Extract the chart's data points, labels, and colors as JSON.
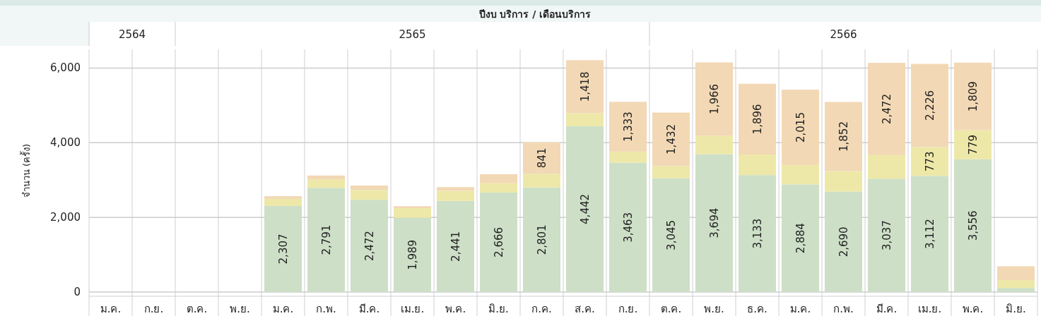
{
  "chart_data": {
    "type": "bar",
    "stacked": true,
    "xlabel": "ปีงบ บริการ  /  เดือนบริการ",
    "ylabel": "จำนวน (ครั้ง)",
    "categories": [
      "ม.ค.",
      "ก.ย.",
      "ต.ค.",
      "พ.ย.",
      "ม.ค.",
      "ก.พ.",
      "มี.ค.",
      "เม.ย.",
      "พ.ค.",
      "มิ.ย.",
      "ก.ค.",
      "ส.ค.",
      "ก.ย.",
      "ต.ค.",
      "พ.ย.",
      "ธ.ค.",
      "ม.ค.",
      "ก.พ.",
      "มี.ค.",
      "เม.ย.",
      "พ.ค.",
      "มิ.ย."
    ],
    "annotations": [
      "2564",
      "2565",
      "2566"
    ],
    "series": [
      {
        "color": "#cddfc7",
        "values": [
          null,
          null,
          null,
          null,
          2307,
          2791,
          2472,
          1989,
          2441,
          2666,
          2801,
          4442,
          3463,
          3045,
          3694,
          3133,
          2884,
          2690,
          3037,
          3112,
          3556,
          110
        ],
        "value_labels": [
          null,
          null,
          null,
          null,
          "2,307",
          "2,791",
          "2,472",
          "1,989",
          "2,441",
          "2,666",
          "2,801",
          "4,442",
          "3,463",
          "3,045",
          "3,694",
          "3,133",
          "2,884",
          "2,690",
          "3,037",
          "3,112",
          "3,556",
          null
        ]
      },
      {
        "color": "#ede8a8",
        "values": [
          null,
          null,
          null,
          null,
          190,
          230,
          260,
          260,
          270,
          250,
          370,
          350,
          300,
          330,
          490,
          550,
          520,
          550,
          630,
          773,
          779,
          210
        ],
        "value_labels": [
          null,
          null,
          null,
          null,
          null,
          null,
          null,
          null,
          null,
          null,
          null,
          null,
          null,
          null,
          null,
          null,
          null,
          null,
          null,
          "773",
          "779",
          null
        ]
      },
      {
        "color": "#f2d8b5",
        "values": [
          null,
          null,
          null,
          null,
          70,
          100,
          120,
          50,
          100,
          240,
          841,
          1418,
          1333,
          1432,
          1966,
          1896,
          2015,
          1852,
          2472,
          2226,
          1809,
          370
        ],
        "value_labels": [
          null,
          null,
          null,
          null,
          null,
          null,
          null,
          null,
          null,
          null,
          "841",
          "1,418",
          "1,333",
          "1,432",
          "1,966",
          "1,896",
          "2,015",
          "1,852",
          "2,472",
          "2,226",
          "1,809",
          null
        ]
      }
    ],
    "ylim": [
      0,
      6500
    ],
    "yticks": [
      {
        "value": 0,
        "label": "0"
      },
      {
        "value": 2000,
        "label": "2,000"
      },
      {
        "value": 4000,
        "label": "4,000"
      },
      {
        "value": 6000,
        "label": "6,000"
      }
    ],
    "grid": true
  }
}
